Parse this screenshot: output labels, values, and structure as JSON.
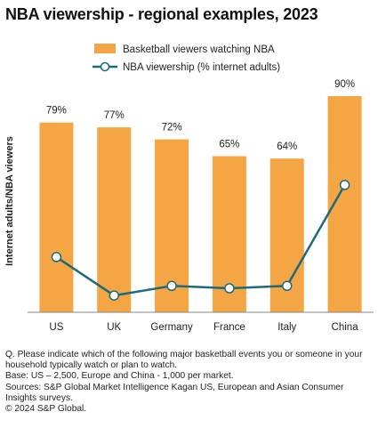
{
  "title": "NBA viewership - regional examples, 2023",
  "colors": {
    "bar": "#f4a644",
    "line": "#1e6a7d",
    "axis": "#888888",
    "text": "#222222"
  },
  "chart_data": {
    "type": "bar",
    "title": "NBA viewership - regional examples, 2023",
    "xlabel": "",
    "ylabel": "Internet adults/NBA viewers",
    "categories": [
      "US",
      "UK",
      "Germany",
      "France",
      "Italy",
      "China"
    ],
    "series": [
      {
        "name": "Basketball viewers watching NBA",
        "type": "bar",
        "values": [
          79,
          77,
          72,
          65,
          64,
          90
        ],
        "labels": [
          "79%",
          "77%",
          "72%",
          "65%",
          "64%",
          "90%"
        ]
      },
      {
        "name": "NBA viewership (% internet adults)",
        "type": "line",
        "values": [
          23,
          7,
          11,
          10,
          11,
          53
        ]
      }
    ],
    "ylim": [
      0,
      100
    ],
    "grid": false,
    "legend": "top"
  },
  "notes": [
    "Q. Please indicate which of the following major basketball events you or someone in your household typically watch or plan to watch.",
    "Base: US – 2,500, Europe and China - 1,000 per market.",
    "Sources: S&P Global Market Intelligence Kagan US, European and Asian Consumer Insights surveys.",
    "© 2024 S&P Global."
  ]
}
